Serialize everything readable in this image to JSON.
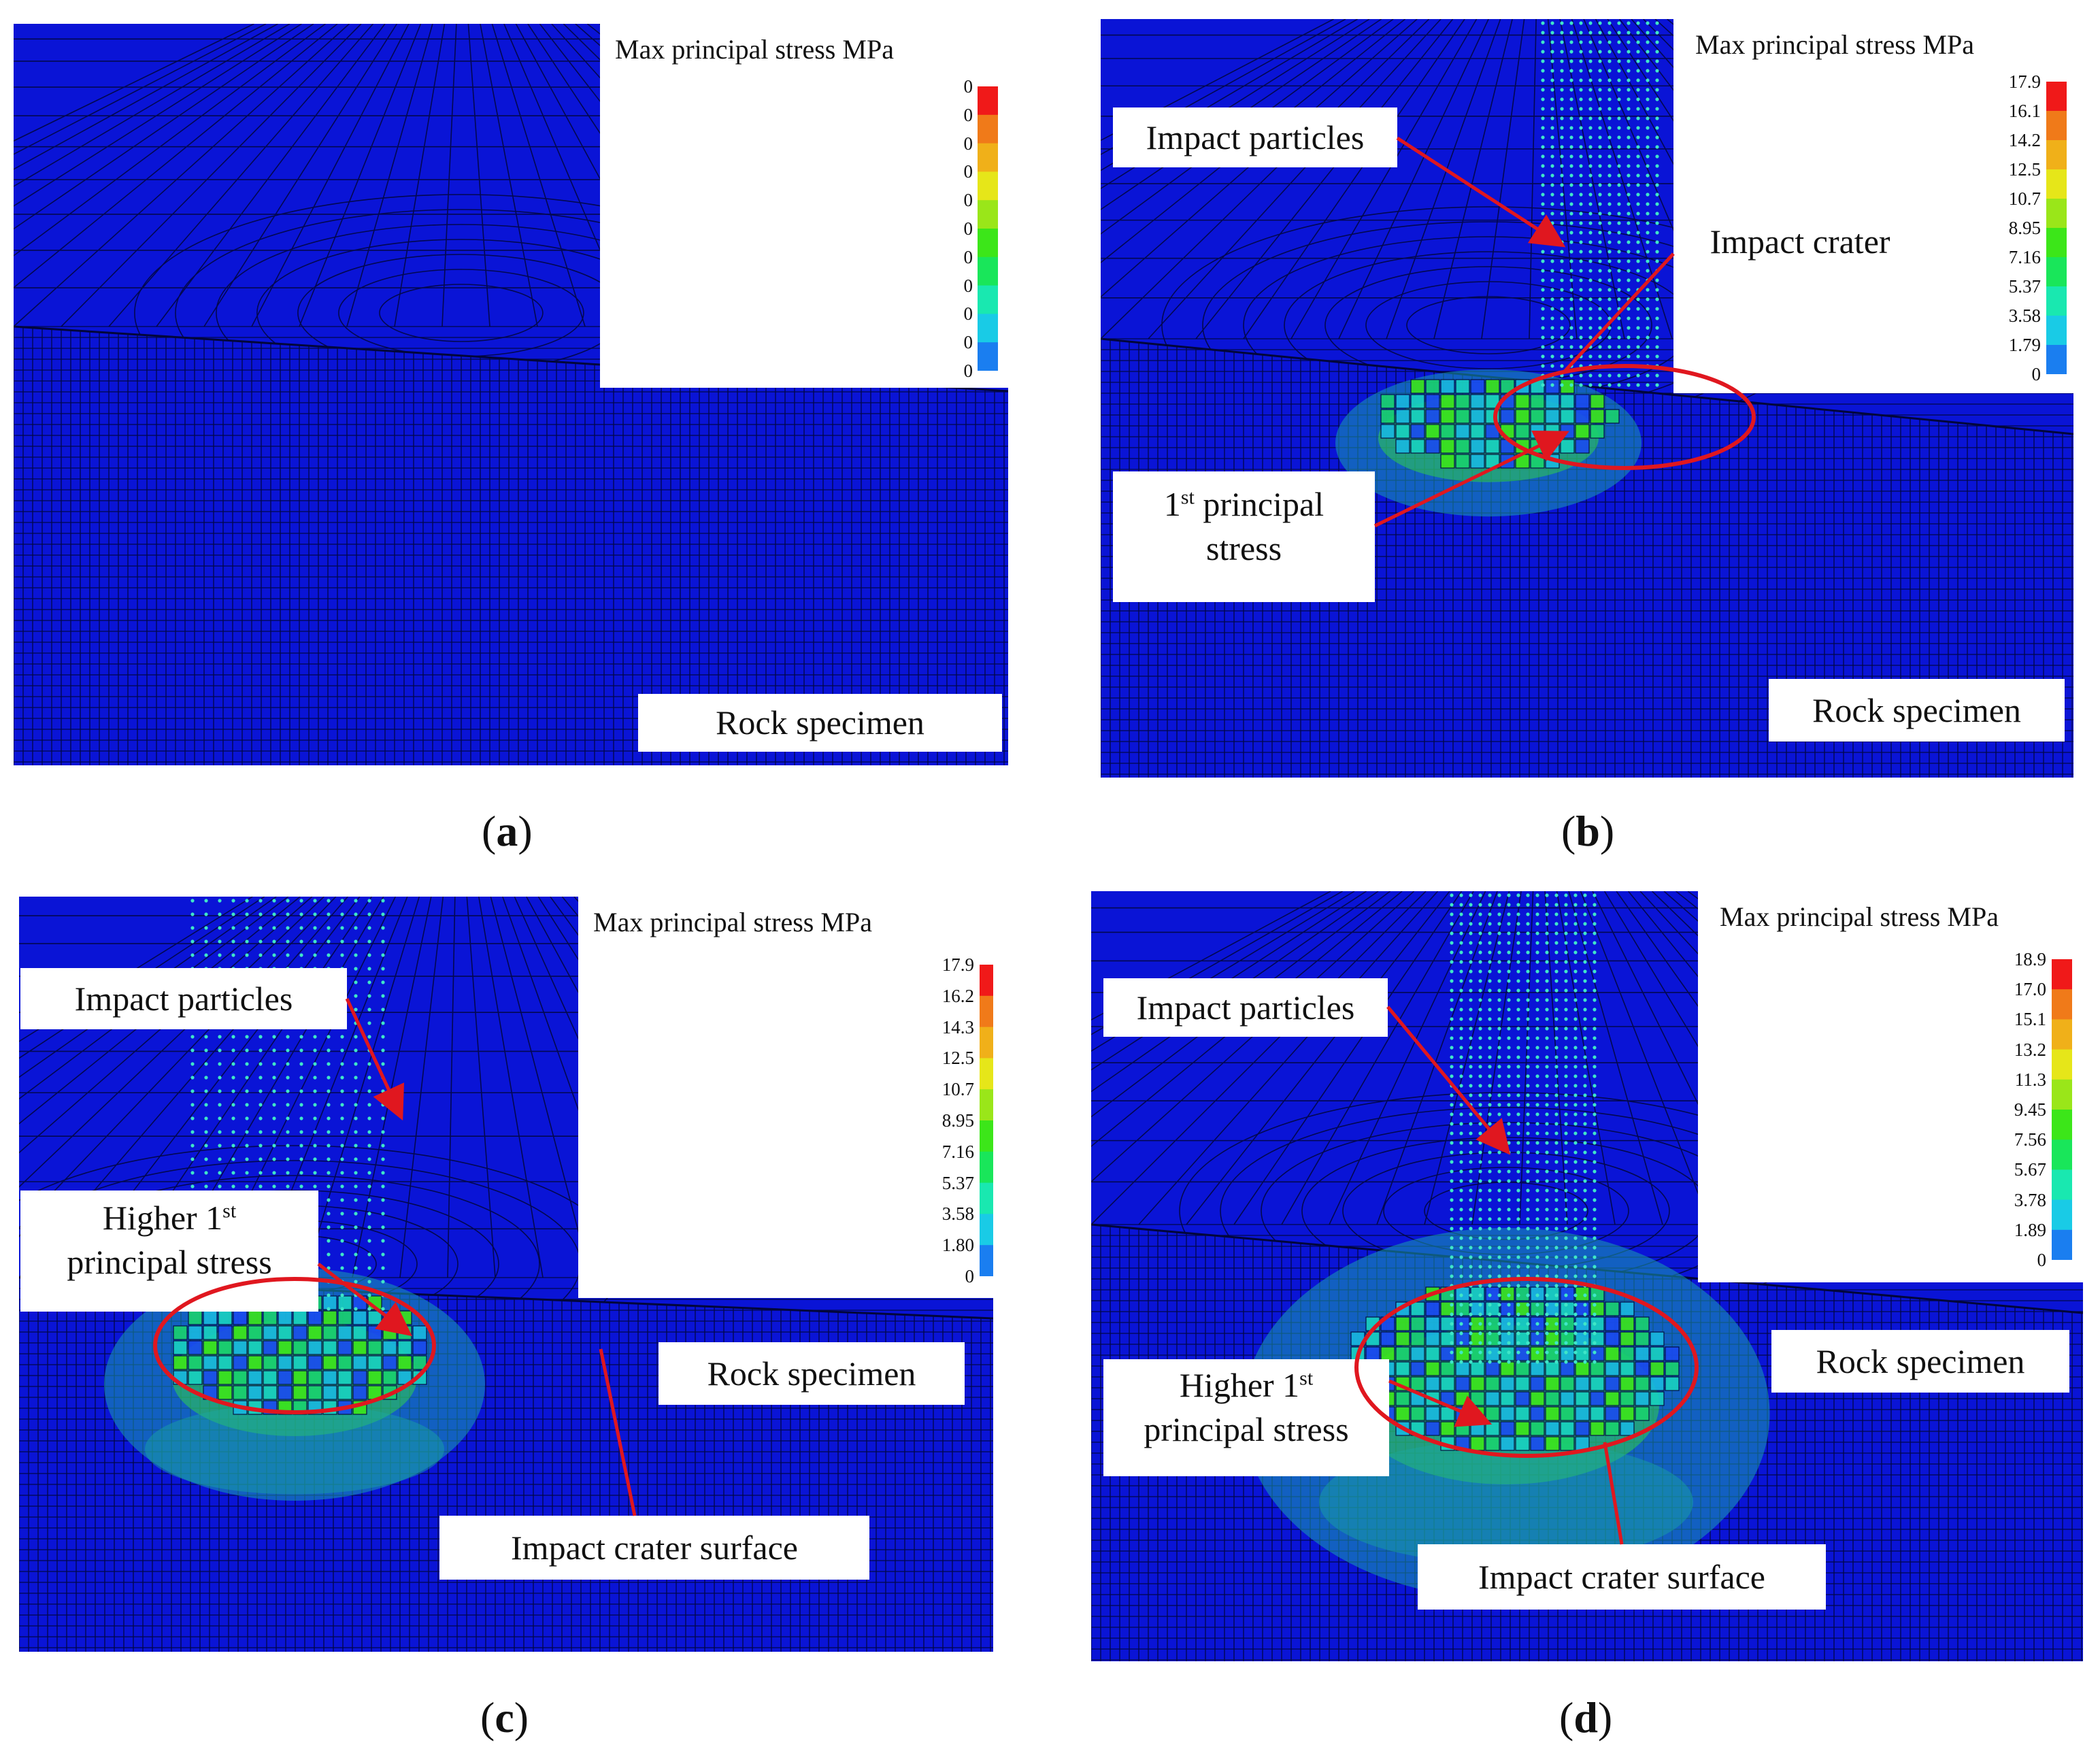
{
  "colors": {
    "mesh_blue": "#0a14d6",
    "mesh_line": "#02063a",
    "annotation_red": "#e0171f",
    "particle_cyan": "#3fe6c8",
    "stress_green": "#2fcf4c",
    "scale": [
      "#1a1af0",
      "#1a7ef0",
      "#19cbe6",
      "#19e8b0",
      "#19e65a",
      "#3ce619",
      "#9ae619",
      "#e6e619",
      "#f0b019",
      "#f07a19",
      "#f01919"
    ]
  },
  "panels": [
    {
      "id": "a",
      "caption": "a",
      "legend": {
        "title": "Max principal stress  MPa",
        "ticks": [
          "0",
          "0",
          "0",
          "0",
          "0",
          "0",
          "0",
          "0",
          "0",
          "0",
          "0"
        ]
      },
      "labels": {
        "rock": "Rock specimen"
      }
    },
    {
      "id": "b",
      "caption": "b",
      "legend": {
        "title": "Max principal stress  MPa",
        "ticks": [
          "17.9",
          "16.1",
          "14.2",
          "12.5",
          "10.7",
          "8.95",
          "7.16",
          "5.37",
          "3.58",
          "1.79",
          "0"
        ]
      },
      "labels": {
        "particles": "Impact particles",
        "crater": "Impact crater",
        "stress_num": "1",
        "stress_sup": "st",
        "stress_l1": "principal",
        "stress_l2": "stress",
        "rock": "Rock specimen"
      }
    },
    {
      "id": "c",
      "caption": "c",
      "legend": {
        "title": "Max principal stress  MPa",
        "ticks": [
          "17.9",
          "16.2",
          "14.3",
          "12.5",
          "10.7",
          "8.95",
          "7.16",
          "5.37",
          "3.58",
          "1.80",
          "0"
        ]
      },
      "labels": {
        "particles": "Impact particles",
        "stress_l1": "Higher 1",
        "stress_sup": "st",
        "stress_l2": "principal stress",
        "rock": "Rock specimen",
        "crater_surface": "Impact crater surface"
      }
    },
    {
      "id": "d",
      "caption": "d",
      "legend": {
        "title": "Max principal stress  MPa",
        "ticks": [
          "18.9",
          "17.0",
          "15.1",
          "13.2",
          "11.3",
          "9.45",
          "7.56",
          "5.67",
          "3.78",
          "1.89",
          "0"
        ]
      },
      "labels": {
        "particles": "Impact particles",
        "stress_l1": "Higher 1",
        "stress_sup": "st",
        "stress_l2": "principal stress",
        "rock": "Rock specimen",
        "crater_surface": "Impact crater surface"
      }
    }
  ]
}
